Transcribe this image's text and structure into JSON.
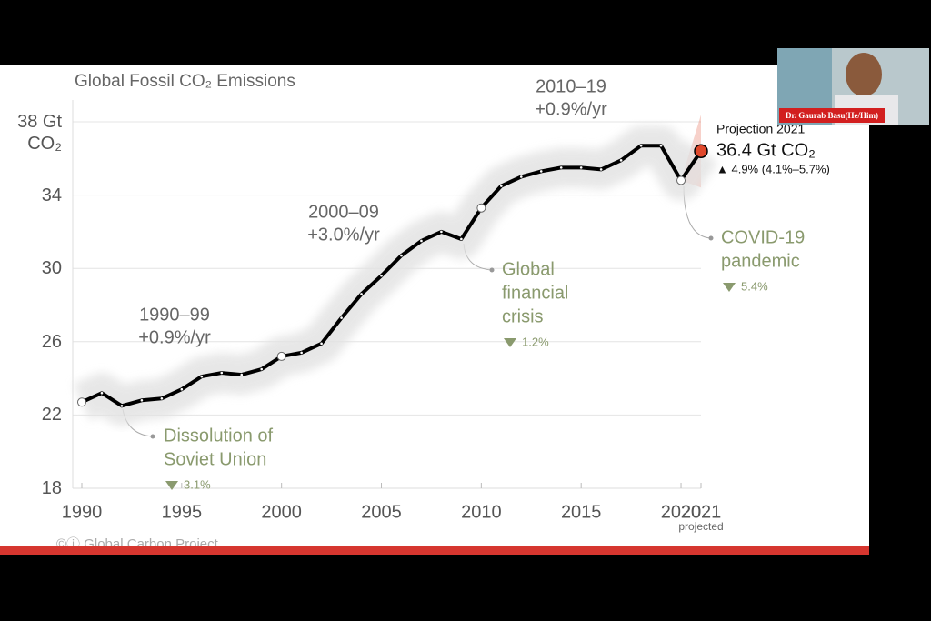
{
  "video_tile": {
    "name": "Dr. Gaurab Basu(He/Him)"
  },
  "chart_data": {
    "type": "line",
    "title": "Global Fossil CO₂ Emissions",
    "x": [
      1990,
      1991,
      1992,
      1993,
      1994,
      1995,
      1996,
      1997,
      1998,
      1999,
      2000,
      2001,
      2002,
      2003,
      2004,
      2005,
      2006,
      2007,
      2008,
      2009,
      2010,
      2011,
      2012,
      2013,
      2014,
      2015,
      2016,
      2017,
      2018,
      2019,
      2020,
      2021
    ],
    "series": [
      {
        "color": "#000000",
        "values": [
          22.7,
          23.2,
          22.5,
          22.8,
          22.9,
          23.4,
          24.1,
          24.3,
          24.2,
          24.5,
          25.2,
          25.4,
          25.9,
          27.3,
          28.6,
          29.6,
          30.7,
          31.5,
          32.0,
          31.6,
          33.3,
          34.5,
          35.0,
          35.3,
          35.5,
          35.5,
          35.4,
          35.9,
          36.7,
          36.7,
          34.8,
          36.4
        ]
      }
    ],
    "highlight_x": [
      1990,
      2000,
      2010,
      2020
    ],
    "projection_color": "#e0482b",
    "xlim": [
      1990,
      2021
    ],
    "ylim": [
      18,
      38
    ],
    "xticks": [
      1990,
      1995,
      2000,
      2005,
      2010,
      2015,
      2020,
      2021
    ],
    "x_note": "projected",
    "yticks": [
      18,
      22,
      26,
      30,
      34,
      {
        "value": 38,
        "label": "38 Gt CO₂"
      }
    ],
    "grid": true,
    "annotations": [
      {
        "lines": [
          "1990–99",
          "+0.9%/yr"
        ]
      },
      {
        "lines": [
          "2000–09",
          "+3.0%/yr"
        ]
      },
      {
        "lines": [
          "2010–19",
          "+0.9%/yr"
        ]
      }
    ],
    "events": [
      {
        "lines": [
          "Dissolution of",
          "Soviet Union"
        ],
        "change": "3.1%"
      },
      {
        "lines": [
          "Global",
          "financial",
          "crisis"
        ],
        "change": "1.2%"
      },
      {
        "lines": [
          "COVID-19",
          "pandemic"
        ],
        "change": "5.4%"
      }
    ],
    "projection": {
      "heading": "Projection 2021",
      "value": "36.4 Gt CO₂",
      "change": "▲ 4.9% (4.1%–5.7%)"
    },
    "source": "©ⓘ Global Carbon Project"
  }
}
